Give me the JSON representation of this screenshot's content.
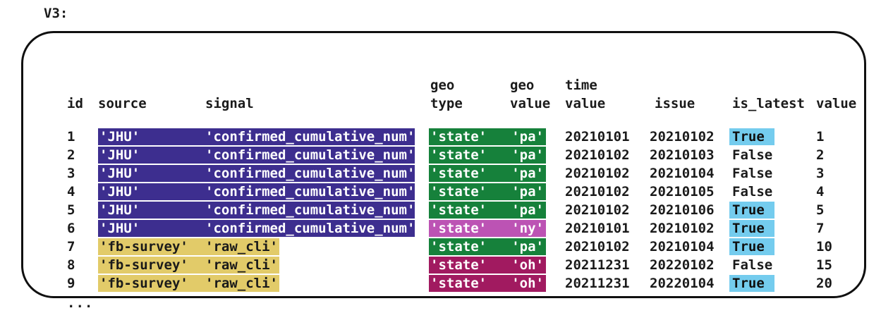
{
  "label": "V3:",
  "panel": {
    "headers": {
      "id": "id",
      "source": "source",
      "signal": "signal",
      "geo_type": "geo\ntype",
      "geo_value": "geo\nvalue",
      "time_value": "time\nvalue",
      "issue": "issue",
      "is_latest": "is_latest",
      "value": "value"
    },
    "rows": [
      {
        "id": "1",
        "source": "'JHU'",
        "signal": "'confirmed_cumulative_num'",
        "source_color": "source_jhu",
        "geo_type": "'state'",
        "geo_value": "'pa'",
        "geo_color": "geo_pa",
        "time_value": "20210101",
        "issue": "20210102",
        "is_latest": "True",
        "latest_highlight": true,
        "value": "1"
      },
      {
        "id": "2",
        "source": "'JHU'",
        "signal": "'confirmed_cumulative_num'",
        "source_color": "source_jhu",
        "geo_type": "'state'",
        "geo_value": "'pa'",
        "geo_color": "geo_pa",
        "time_value": "20210102",
        "issue": "20210103",
        "is_latest": "False",
        "latest_highlight": false,
        "value": "2"
      },
      {
        "id": "3",
        "source": "'JHU'",
        "signal": "'confirmed_cumulative_num'",
        "source_color": "source_jhu",
        "geo_type": "'state'",
        "geo_value": "'pa'",
        "geo_color": "geo_pa",
        "time_value": "20210102",
        "issue": "20210104",
        "is_latest": "False",
        "latest_highlight": false,
        "value": "3"
      },
      {
        "id": "4",
        "source": "'JHU'",
        "signal": "'confirmed_cumulative_num'",
        "source_color": "source_jhu",
        "geo_type": "'state'",
        "geo_value": "'pa'",
        "geo_color": "geo_pa",
        "time_value": "20210102",
        "issue": "20210105",
        "is_latest": "False",
        "latest_highlight": false,
        "value": "4"
      },
      {
        "id": "5",
        "source": "'JHU'",
        "signal": "'confirmed_cumulative_num'",
        "source_color": "source_jhu",
        "geo_type": "'state'",
        "geo_value": "'pa'",
        "geo_color": "geo_pa",
        "time_value": "20210102",
        "issue": "20210106",
        "is_latest": "True",
        "latest_highlight": true,
        "value": "5"
      },
      {
        "id": "6",
        "source": "'JHU'",
        "signal": "'confirmed_cumulative_num'",
        "source_color": "source_jhu",
        "geo_type": "'state'",
        "geo_value": "'ny'",
        "geo_color": "geo_ny",
        "time_value": "20210101",
        "issue": "20210102",
        "is_latest": "True",
        "latest_highlight": true,
        "value": "7"
      },
      {
        "id": "7",
        "source": "'fb-survey'",
        "signal": "'raw_cli'",
        "source_color": "source_fb",
        "geo_type": "'state'",
        "geo_value": "'pa'",
        "geo_color": "geo_pa",
        "time_value": "20210102",
        "issue": "20210104",
        "is_latest": "True",
        "latest_highlight": true,
        "value": "10"
      },
      {
        "id": "8",
        "source": "'fb-survey'",
        "signal": "'raw_cli'",
        "source_color": "source_fb",
        "geo_type": "'state'",
        "geo_value": "'oh'",
        "geo_color": "geo_oh",
        "time_value": "20211231",
        "issue": "20220102",
        "is_latest": "False",
        "latest_highlight": false,
        "value": "15"
      },
      {
        "id": "9",
        "source": "'fb-survey'",
        "signal": "'raw_cli'",
        "source_color": "source_fb",
        "geo_type": "'state'",
        "geo_value": "'oh'",
        "geo_color": "geo_oh",
        "time_value": "20211231",
        "issue": "20220104",
        "is_latest": "True",
        "latest_highlight": true,
        "value": "20"
      }
    ],
    "ellipsis": "..."
  },
  "colors": {
    "source_jhu": "#3d2e8f",
    "source_fb": "#e2cb69",
    "geo_pa": "#16813b",
    "geo_ny": "#bc53b4",
    "geo_oh": "#a11a60",
    "is_latest_true": "#74ccee",
    "border": "#101010",
    "text": "#1a1a1a"
  }
}
